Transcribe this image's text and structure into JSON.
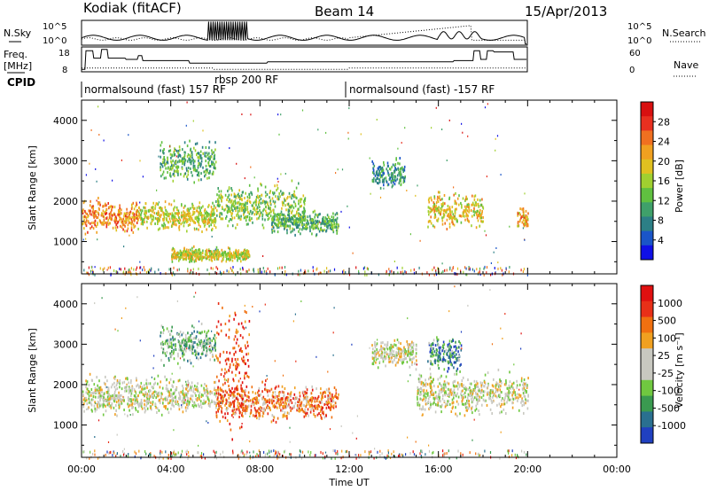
{
  "header": {
    "left": "Kodiak (fitACF)",
    "center": "Beam 14",
    "right": "15/Apr/2013"
  },
  "top_panels": {
    "nsky_label": "N.Sky",
    "nsky_ticks": [
      "10^5",
      "10^0"
    ],
    "nsearch_label": "N.Search",
    "nsearch_ticks": [
      "10^5",
      "10^0"
    ],
    "freq_label_1": "Freq.",
    "freq_label_2": "[MHz]",
    "freq_ticks": [
      "18",
      "8"
    ],
    "nave_label": "Nave",
    "nave_ticks": [
      "60",
      "0"
    ],
    "cpid_label": "CPID",
    "cpid_segments": [
      {
        "label": "normalsound (fast) 157 RF",
        "start_h": 0.0,
        "end_h": 5.9
      },
      {
        "label": "rbsp 200 RF",
        "start_h": 5.9,
        "end_h": 12.0
      },
      {
        "label": "normalsound (fast) -157 RF",
        "start_h": 12.0,
        "end_h": 20.0
      }
    ]
  },
  "chart_data": [
    {
      "type": "heatmap",
      "title": "",
      "xlabel": "",
      "ylabel": "Slant Range [km]",
      "xlim": [
        0,
        24
      ],
      "ylim": [
        200,
        4500
      ],
      "x_ticks": [],
      "y_ticks": [
        "1000",
        "2000",
        "3000",
        "4000"
      ],
      "colorbar": {
        "label": "Power [dB]",
        "ticks": [
          "4",
          "8",
          "12",
          "16",
          "20",
          "24",
          "28"
        ],
        "colors": [
          "#1010e6",
          "#1a55c8",
          "#2c7f86",
          "#3fa06a",
          "#60c040",
          "#a0d030",
          "#e0c020",
          "#f0a020",
          "#f07020",
          "#e83020",
          "#d81010"
        ]
      },
      "scatter_regions": [
        {
          "start_h": 0.0,
          "end_h": 2.5,
          "range_center": 1650,
          "range_width": 350,
          "level": 0.75
        },
        {
          "start_h": 2.5,
          "end_h": 6.0,
          "range_center": 1650,
          "range_width": 300,
          "level": 0.55
        },
        {
          "start_h": 3.5,
          "end_h": 6.0,
          "range_center": 3000,
          "range_width": 400,
          "level": 0.35
        },
        {
          "start_h": 4.0,
          "end_h": 7.5,
          "range_center": 700,
          "range_width": 150,
          "level": 0.55
        },
        {
          "start_h": 6.0,
          "end_h": 10.0,
          "range_center": 1900,
          "range_width": 450,
          "level": 0.45
        },
        {
          "start_h": 8.5,
          "end_h": 11.5,
          "range_center": 1500,
          "range_width": 250,
          "level": 0.35
        },
        {
          "start_h": 13.0,
          "end_h": 14.5,
          "range_center": 2700,
          "range_width": 300,
          "level": 0.25
        },
        {
          "start_h": 15.5,
          "end_h": 18.0,
          "range_center": 1800,
          "range_width": 400,
          "level": 0.6
        },
        {
          "start_h": 19.5,
          "end_h": 20.0,
          "range_center": 1600,
          "range_width": 250,
          "level": 0.7
        }
      ]
    },
    {
      "type": "heatmap",
      "title": "",
      "xlabel": "Time UT",
      "ylabel": "Slant Range [km]",
      "xlim": [
        0,
        24
      ],
      "ylim": [
        200,
        4500
      ],
      "x_ticks": [
        "00:00",
        "04:00",
        "08:00",
        "12:00",
        "16:00",
        "20:00",
        "00:00"
      ],
      "y_ticks": [
        "1000",
        "2000",
        "3000",
        "4000"
      ],
      "colorbar": {
        "label": "Velocity [m s⁻¹]",
        "ticks": [
          "1000",
          "500",
          "100",
          "25",
          "-25",
          "-100",
          "-500",
          "-1000"
        ],
        "colors": [
          "#2040c0",
          "#2a7090",
          "#3a9a50",
          "#70c840",
          "#c8c8c0",
          "#c8c8c0",
          "#f0a020",
          "#f07010",
          "#e83018",
          "#e01010"
        ]
      },
      "scatter_regions": [
        {
          "start_h": 0.0,
          "end_h": 6.0,
          "range_center": 1750,
          "range_width": 400,
          "level": 0.5
        },
        {
          "start_h": 3.5,
          "end_h": 6.0,
          "range_center": 3000,
          "range_width": 400,
          "level": 0.3
        },
        {
          "start_h": 6.0,
          "end_h": 11.5,
          "range_center": 1600,
          "range_width": 400,
          "level": 0.75
        },
        {
          "start_h": 6.0,
          "end_h": 7.5,
          "range_center": 2500,
          "range_width": 1500,
          "level": 0.9
        },
        {
          "start_h": 13.0,
          "end_h": 15.0,
          "range_center": 2800,
          "range_width": 300,
          "level": 0.5
        },
        {
          "start_h": 15.0,
          "end_h": 20.0,
          "range_center": 1800,
          "range_width": 450,
          "level": 0.5
        },
        {
          "start_h": 15.5,
          "end_h": 17.0,
          "range_center": 2800,
          "range_width": 400,
          "level": 0.2
        }
      ]
    }
  ]
}
